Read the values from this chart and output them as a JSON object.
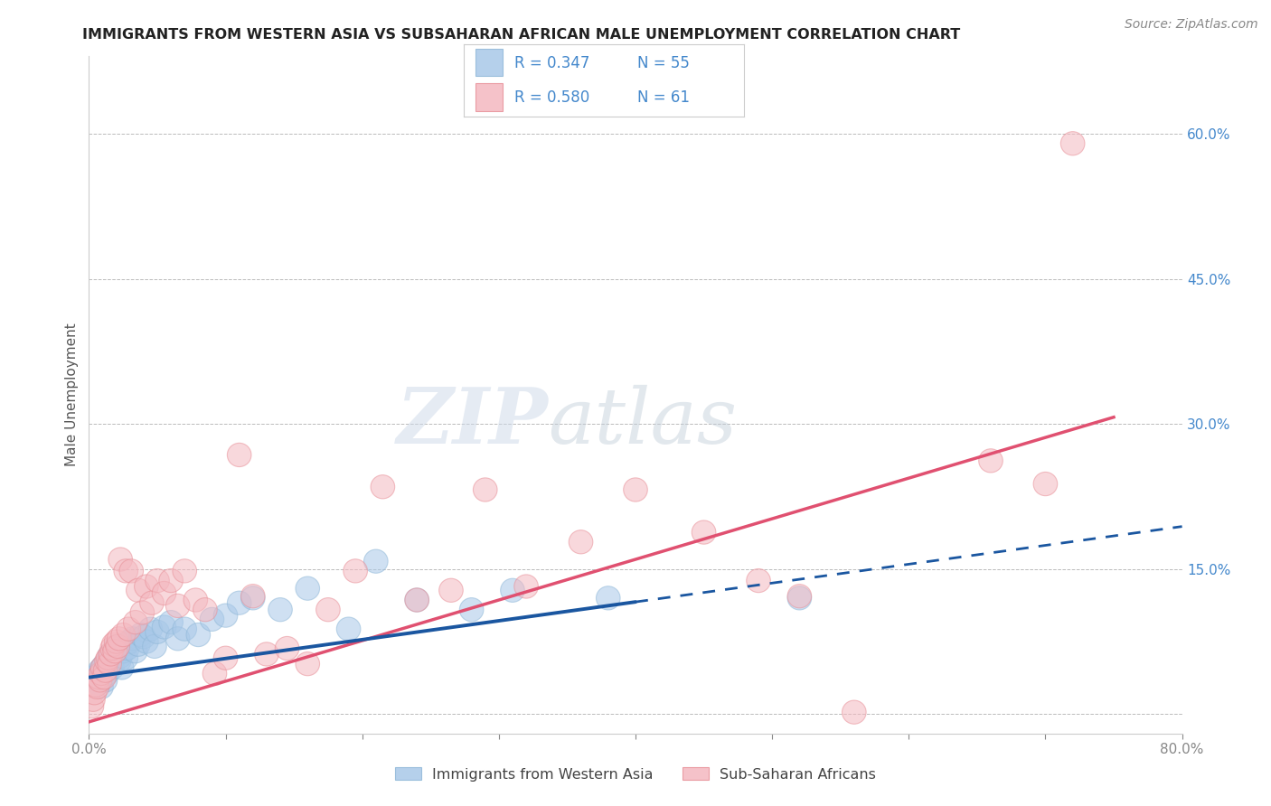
{
  "title": "IMMIGRANTS FROM WESTERN ASIA VS SUBSAHARAN AFRICAN MALE UNEMPLOYMENT CORRELATION CHART",
  "source": "Source: ZipAtlas.com",
  "ylabel": "Male Unemployment",
  "xlim": [
    0.0,
    0.8
  ],
  "ylim": [
    -0.02,
    0.68
  ],
  "xticks": [
    0.0,
    0.1,
    0.2,
    0.3,
    0.4,
    0.5,
    0.6,
    0.7,
    0.8
  ],
  "xticklabels": [
    "0.0%",
    "",
    "",
    "",
    "",
    "",
    "",
    "",
    "80.0%"
  ],
  "right_yticks": [
    0.0,
    0.15,
    0.3,
    0.45,
    0.6
  ],
  "right_yticklabels": [
    "",
    "15.0%",
    "30.0%",
    "45.0%",
    "60.0%"
  ],
  "legend_label1": "Immigrants from Western Asia",
  "legend_label2": "Sub-Saharan Africans",
  "blue_color": "#a8c8e8",
  "pink_color": "#f4b8c0",
  "blue_line_color": "#1a56a0",
  "pink_line_color": "#e05070",
  "blue_edge_color": "#90b8d8",
  "pink_edge_color": "#e89098",
  "right_axis_color": "#4488cc",
  "watermark_zip": "ZIP",
  "watermark_atlas": "atlas",
  "blue_scatter_x": [
    0.003,
    0.005,
    0.006,
    0.007,
    0.008,
    0.009,
    0.01,
    0.01,
    0.011,
    0.012,
    0.013,
    0.014,
    0.015,
    0.015,
    0.016,
    0.017,
    0.018,
    0.019,
    0.02,
    0.021,
    0.022,
    0.023,
    0.024,
    0.025,
    0.026,
    0.027,
    0.028,
    0.03,
    0.032,
    0.034,
    0.036,
    0.038,
    0.04,
    0.042,
    0.045,
    0.048,
    0.05,
    0.055,
    0.06,
    0.065,
    0.07,
    0.08,
    0.09,
    0.1,
    0.11,
    0.12,
    0.14,
    0.16,
    0.19,
    0.21,
    0.24,
    0.28,
    0.31,
    0.38,
    0.52
  ],
  "blue_scatter_y": [
    0.035,
    0.038,
    0.04,
    0.032,
    0.045,
    0.028,
    0.048,
    0.038,
    0.05,
    0.035,
    0.042,
    0.048,
    0.055,
    0.06,
    0.062,
    0.048,
    0.058,
    0.065,
    0.07,
    0.068,
    0.055,
    0.06,
    0.048,
    0.065,
    0.072,
    0.058,
    0.068,
    0.075,
    0.078,
    0.065,
    0.072,
    0.082,
    0.08,
    0.075,
    0.088,
    0.07,
    0.085,
    0.09,
    0.095,
    0.078,
    0.088,
    0.082,
    0.098,
    0.102,
    0.115,
    0.12,
    0.108,
    0.13,
    0.088,
    0.158,
    0.118,
    0.108,
    0.128,
    0.12,
    0.12
  ],
  "pink_scatter_x": [
    0.002,
    0.003,
    0.004,
    0.005,
    0.006,
    0.007,
    0.008,
    0.009,
    0.01,
    0.011,
    0.012,
    0.013,
    0.014,
    0.015,
    0.016,
    0.017,
    0.018,
    0.019,
    0.02,
    0.021,
    0.022,
    0.023,
    0.025,
    0.027,
    0.029,
    0.031,
    0.034,
    0.036,
    0.039,
    0.042,
    0.046,
    0.05,
    0.055,
    0.06,
    0.065,
    0.07,
    0.078,
    0.085,
    0.092,
    0.1,
    0.11,
    0.12,
    0.13,
    0.145,
    0.16,
    0.175,
    0.195,
    0.215,
    0.24,
    0.265,
    0.29,
    0.32,
    0.36,
    0.4,
    0.45,
    0.49,
    0.52,
    0.56,
    0.66,
    0.7,
    0.72
  ],
  "pink_scatter_y": [
    0.008,
    0.015,
    0.022,
    0.03,
    0.028,
    0.038,
    0.035,
    0.042,
    0.048,
    0.038,
    0.045,
    0.055,
    0.058,
    0.052,
    0.062,
    0.068,
    0.072,
    0.065,
    0.075,
    0.07,
    0.078,
    0.16,
    0.082,
    0.148,
    0.088,
    0.148,
    0.095,
    0.128,
    0.105,
    0.132,
    0.115,
    0.138,
    0.125,
    0.138,
    0.112,
    0.148,
    0.118,
    0.108,
    0.042,
    0.058,
    0.268,
    0.122,
    0.062,
    0.068,
    0.052,
    0.108,
    0.148,
    0.235,
    0.118,
    0.128,
    0.232,
    0.132,
    0.178,
    0.232,
    0.188,
    0.138,
    0.122,
    0.002,
    0.262,
    0.238,
    0.59
  ],
  "blue_trend_x_solid_end": 0.4,
  "blue_trend_intercept": 0.038,
  "blue_trend_slope": 0.195,
  "pink_trend_intercept": -0.008,
  "pink_trend_slope": 0.42
}
